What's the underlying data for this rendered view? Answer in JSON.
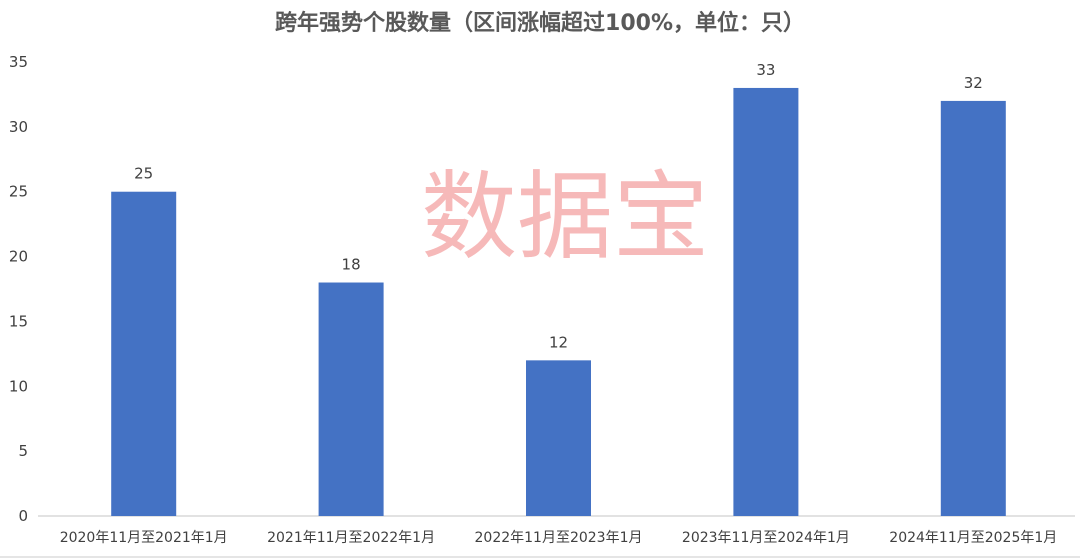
{
  "chart_data": {
    "type": "bar",
    "title": "跨年强势个股数量（区间涨幅超过100%，单位：只）",
    "categories": [
      "2020年11月至2021年1月",
      "2021年11月至2022年1月",
      "2022年11月至2023年1月",
      "2023年11月至2024年1月",
      "2024年11月至2025年1月"
    ],
    "values": [
      25,
      18,
      12,
      33,
      32
    ],
    "ylim": [
      0,
      35
    ],
    "yticks": [
      0,
      5,
      10,
      15,
      20,
      25,
      30,
      35
    ],
    "xlabel": "",
    "ylabel": "",
    "grid": false,
    "data_labels": true,
    "bar_color": "#4472c4"
  },
  "watermark": {
    "text": "数据宝",
    "color": "#f08080"
  }
}
